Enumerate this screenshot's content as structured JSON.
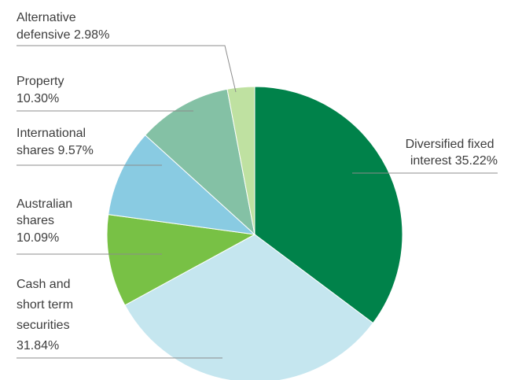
{
  "chart_data": {
    "type": "pie",
    "slices": [
      {
        "name": "Diversified fixed interest",
        "value": 35.22,
        "color": "#00824a",
        "label_lines": [
          "Diversified fixed",
          "interest 35.22%"
        ]
      },
      {
        "name": "Cash and short term securities",
        "value": 31.84,
        "color": "#c5e6ef",
        "label_lines": [
          "Cash and",
          "short term",
          "securities",
          "31.84%"
        ]
      },
      {
        "name": "Australian shares",
        "value": 10.09,
        "color": "#78c145",
        "label_lines": [
          "Australian",
          "shares",
          "10.09%"
        ]
      },
      {
        "name": "International shares",
        "value": 9.57,
        "color": "#89cbe2",
        "label_lines": [
          "International",
          "shares 9.57%"
        ]
      },
      {
        "name": "Property",
        "value": 10.3,
        "color": "#84c1a5",
        "label_lines": [
          "Property",
          "10.30%"
        ]
      },
      {
        "name": "Alternative defensive",
        "value": 2.98,
        "color": "#bfe1a1",
        "label_lines": [
          "Alternative",
          "defensive 2.98%"
        ]
      }
    ],
    "start_angle_deg": 0,
    "direction": "clockwise"
  }
}
